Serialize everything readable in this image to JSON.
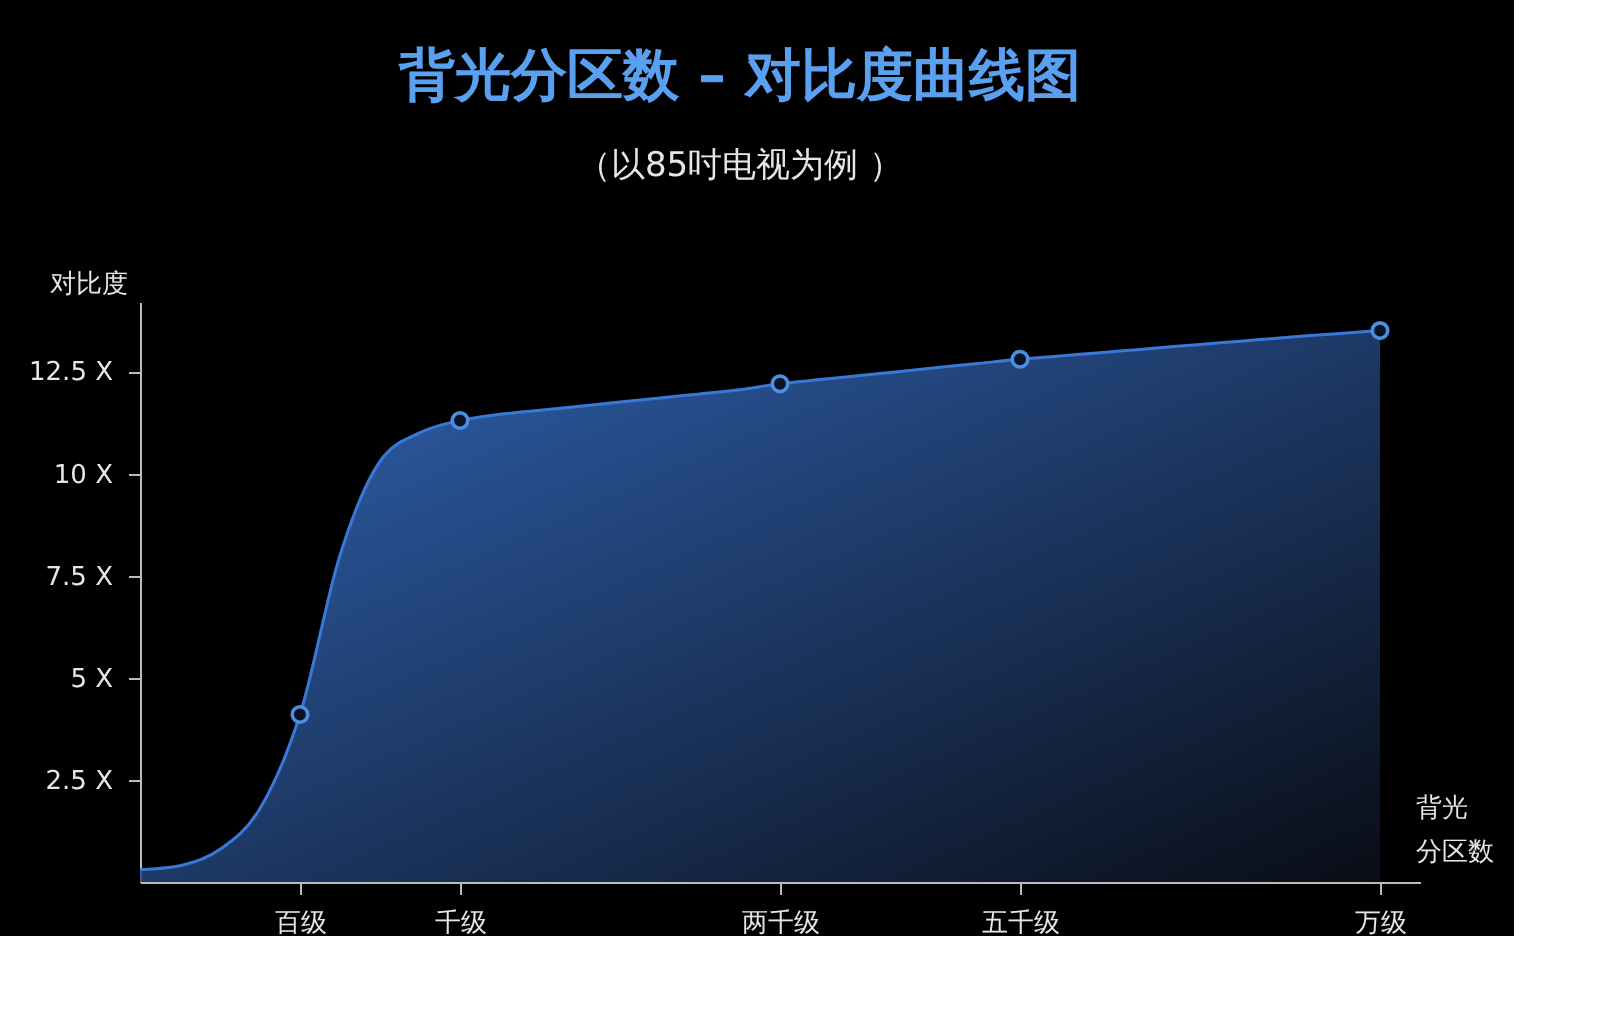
{
  "chart_data": {
    "type": "area",
    "title": "背光分区数 – 对比度曲线图",
    "subtitle": "（以85吋电视为例 ）",
    "xlabel": "背光分区数",
    "ylabel": "对比度",
    "categories": [
      null,
      null,
      null,
      null,
      "百级",
      null,
      null,
      null,
      "千级",
      null,
      null,
      null,
      null,
      null,
      null,
      null,
      "两千级",
      null,
      null,
      null,
      null,
      null,
      "五千级",
      null,
      null,
      null,
      null,
      null,
      null,
      null,
      null,
      "万级",
      null
    ],
    "ylim": [
      0,
      14.2
    ],
    "yticks": [
      {
        "value": 2.5,
        "label": "2.5 X"
      },
      {
        "value": 5,
        "label": "5 X"
      },
      {
        "value": 7.5,
        "label": "7.5 X"
      },
      {
        "value": 10,
        "label": "10 X"
      },
      {
        "value": 12.5,
        "label": "12.5 X"
      }
    ],
    "grid": false,
    "series": [
      {
        "color": "#3a78d8",
        "values": [
          0.3,
          0.4,
          0.8,
          1.8,
          4.1,
          8.0,
          10.3,
          11.0,
          11.3,
          11.45,
          11.55,
          11.65,
          11.75,
          11.85,
          11.95,
          12.05,
          12.2,
          12.3,
          12.4,
          12.5,
          12.6,
          12.7,
          12.8,
          12.88,
          12.96,
          13.04,
          13.12,
          13.2,
          13.28,
          13.36,
          13.43,
          13.5,
          null
        ]
      },
      {
        "type": "scatter",
        "color": "#4a90e2",
        "marker": "circle",
        "values": [
          null,
          null,
          null,
          null,
          4.1,
          null,
          null,
          null,
          11.3,
          null,
          null,
          null,
          null,
          null,
          null,
          null,
          12.2,
          null,
          null,
          null,
          null,
          null,
          12.8,
          null,
          null,
          null,
          null,
          null,
          null,
          null,
          null,
          13.5,
          null
        ]
      }
    ]
  }
}
